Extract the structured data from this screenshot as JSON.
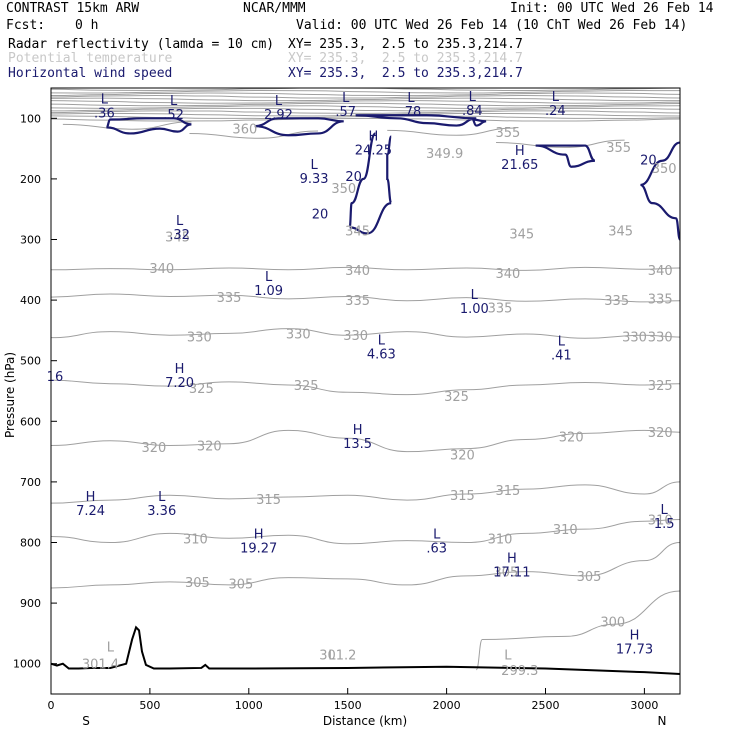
{
  "header": {
    "model": "CONTRAST 15km ARW",
    "org": "NCAR/MMM",
    "init": "Init: 00 UTC Wed 26 Feb 14",
    "fcst_label": "Fcst:",
    "fcst_value": "0 h",
    "valid": "Valid: 00 UTC Wed 26 Feb 14 (10 ChT Wed 26 Feb 14)",
    "fields": [
      {
        "name": "Radar reflectivity (lamda = 10 cm)",
        "xy": "XY= 235.3,  2.5 to 235.3,214.7"
      },
      {
        "name": "Potential temperature",
        "xy": "XY= 235.3,  2.5 to 235.3,214.7"
      },
      {
        "name": "Horizontal wind speed",
        "xy": "XY= 235.3,  2.5 to 235.3,214.7"
      }
    ]
  },
  "colors": {
    "theta": "#a0a0a0",
    "wind": "#1a1a6e",
    "terrain": "#000000",
    "potential_temperature_header": "#c8c8c8"
  },
  "chart_data": {
    "type": "contour",
    "xlabel": "Distance (km)",
    "ylabel": "Pressure (hPa)",
    "xlim": [
      0,
      3180
    ],
    "ylim": [
      1050,
      50
    ],
    "x_ticks": [
      0,
      500,
      1000,
      1500,
      2000,
      2500,
      3000
    ],
    "y_ticks": [
      100,
      200,
      300,
      400,
      500,
      600,
      700,
      800,
      900,
      1000
    ],
    "end_labels": {
      "left": "S",
      "right": "N"
    },
    "theta_labels": [
      {
        "x": 980,
        "y": 117,
        "text": "360"
      },
      {
        "x": 2310,
        "y": 123,
        "text": "355"
      },
      {
        "x": 2870,
        "y": 147,
        "text": "355"
      },
      {
        "x": 1990,
        "y": 157,
        "text": "349.9"
      },
      {
        "x": 3100,
        "y": 182,
        "text": "350"
      },
      {
        "x": 1480,
        "y": 215,
        "text": "350"
      },
      {
        "x": 640,
        "y": 295,
        "text": "345"
      },
      {
        "x": 1550,
        "y": 285,
        "text": "345"
      },
      {
        "x": 2380,
        "y": 290,
        "text": "345"
      },
      {
        "x": 2880,
        "y": 285,
        "text": "345"
      },
      {
        "x": 560,
        "y": 347,
        "text": "340"
      },
      {
        "x": 1550,
        "y": 350,
        "text": "340"
      },
      {
        "x": 2310,
        "y": 355,
        "text": "340"
      },
      {
        "x": 3080,
        "y": 350,
        "text": "340"
      },
      {
        "x": 900,
        "y": 395,
        "text": "335"
      },
      {
        "x": 1550,
        "y": 400,
        "text": "335"
      },
      {
        "x": 2270,
        "y": 412,
        "text": "335"
      },
      {
        "x": 2860,
        "y": 400,
        "text": "335"
      },
      {
        "x": 3080,
        "y": 397,
        "text": "335"
      },
      {
        "x": 750,
        "y": 460,
        "text": "330"
      },
      {
        "x": 1250,
        "y": 455,
        "text": "330"
      },
      {
        "x": 1540,
        "y": 458,
        "text": "330"
      },
      {
        "x": 2950,
        "y": 460,
        "text": "330"
      },
      {
        "x": 3080,
        "y": 460,
        "text": "330"
      },
      {
        "x": 760,
        "y": 545,
        "text": "325"
      },
      {
        "x": 1290,
        "y": 540,
        "text": "325"
      },
      {
        "x": 2050,
        "y": 558,
        "text": "325"
      },
      {
        "x": 3080,
        "y": 540,
        "text": "325"
      },
      {
        "x": 520,
        "y": 642,
        "text": "320"
      },
      {
        "x": 800,
        "y": 640,
        "text": "320"
      },
      {
        "x": 2080,
        "y": 655,
        "text": "320"
      },
      {
        "x": 2630,
        "y": 625,
        "text": "320"
      },
      {
        "x": 3080,
        "y": 618,
        "text": "320"
      },
      {
        "x": 1100,
        "y": 728,
        "text": "315"
      },
      {
        "x": 2080,
        "y": 722,
        "text": "315"
      },
      {
        "x": 2310,
        "y": 713,
        "text": "315"
      },
      {
        "x": 730,
        "y": 793,
        "text": "310"
      },
      {
        "x": 2270,
        "y": 793,
        "text": "310"
      },
      {
        "x": 2600,
        "y": 778,
        "text": "310"
      },
      {
        "x": 3080,
        "y": 762,
        "text": "310"
      },
      {
        "x": 740,
        "y": 865,
        "text": "305"
      },
      {
        "x": 960,
        "y": 868,
        "text": "305"
      },
      {
        "x": 2300,
        "y": 848,
        "text": "305"
      },
      {
        "x": 2720,
        "y": 855,
        "text": "305"
      },
      {
        "x": 2840,
        "y": 930,
        "text": "300"
      },
      {
        "x": 250,
        "y": 1000,
        "text": "301.4"
      },
      {
        "x": 1450,
        "y": 985,
        "text": "301.2"
      },
      {
        "x": 2370,
        "y": 1010,
        "text": "299.3"
      }
    ],
    "theta_extrema": [
      {
        "x": 1420,
        "y": 985,
        "text": "L"
      },
      {
        "x": 300,
        "y": 972,
        "text": "L"
      },
      {
        "x": 2310,
        "y": 985,
        "text": "L"
      }
    ],
    "wind_contour_labels": [
      {
        "x": 1530,
        "y": 195,
        "text": "20"
      },
      {
        "x": 1360,
        "y": 257,
        "text": "20"
      },
      {
        "x": 3020,
        "y": 168,
        "text": "20"
      },
      {
        "x": 20,
        "y": 525,
        "text": "16"
      }
    ],
    "wind_extrema": [
      {
        "x": 270,
        "y": 72,
        "type": "L",
        "value": ".36"
      },
      {
        "x": 620,
        "y": 75,
        "type": "L",
        "value": ".52"
      },
      {
        "x": 1150,
        "y": 75,
        "type": "L",
        "value": "2.92"
      },
      {
        "x": 1490,
        "y": 70,
        "type": "L",
        "value": ".57"
      },
      {
        "x": 1820,
        "y": 70,
        "type": "L",
        "value": ".78"
      },
      {
        "x": 2130,
        "y": 68,
        "type": "L",
        "value": ".84"
      },
      {
        "x": 2550,
        "y": 68,
        "type": "L",
        "value": ".24"
      },
      {
        "x": 1630,
        "y": 133,
        "type": "H",
        "value": "24.25"
      },
      {
        "x": 2370,
        "y": 157,
        "type": "H",
        "value": "21.65"
      },
      {
        "x": 1330,
        "y": 180,
        "type": "L",
        "value": "9.33"
      },
      {
        "x": 650,
        "y": 273,
        "type": "L",
        "value": ".32"
      },
      {
        "x": 1100,
        "y": 365,
        "type": "L",
        "value": "1.09"
      },
      {
        "x": 2140,
        "y": 395,
        "type": "L",
        "value": "1.00"
      },
      {
        "x": 1670,
        "y": 470,
        "type": "L",
        "value": "4.63"
      },
      {
        "x": 2580,
        "y": 472,
        "type": "L",
        "value": ".41"
      },
      {
        "x": 650,
        "y": 517,
        "type": "H",
        "value": "7.20"
      },
      {
        "x": 1550,
        "y": 618,
        "type": "H",
        "value": "13.5"
      },
      {
        "x": 200,
        "y": 728,
        "type": "H",
        "value": "7.24"
      },
      {
        "x": 560,
        "y": 728,
        "type": "L",
        "value": "3.36"
      },
      {
        "x": 1050,
        "y": 790,
        "type": "H",
        "value": "19.27"
      },
      {
        "x": 1950,
        "y": 790,
        "type": "L",
        "value": ".63"
      },
      {
        "x": 2330,
        "y": 830,
        "type": "H",
        "value": "17.11"
      },
      {
        "x": 3100,
        "y": 750,
        "type": "L",
        "value": "1.5"
      },
      {
        "x": 2950,
        "y": 957,
        "type": "H",
        "value": "17.73"
      }
    ],
    "terrain": {
      "x": [
        0,
        30,
        60,
        90,
        140,
        200,
        300,
        380,
        410,
        430,
        445,
        460,
        480,
        520,
        600,
        760,
        780,
        800,
        1000,
        1500,
        2000,
        2500,
        3000,
        3180
      ],
      "p": [
        1000,
        1003,
        1000,
        1008,
        1008,
        1007,
        1007,
        1000,
        960,
        940,
        945,
        980,
        1002,
        1008,
        1008,
        1007,
        1002,
        1008,
        1008,
        1007,
        1005,
        1008,
        1014,
        1017
      ]
    },
    "theta_line_levels": [
      {
        "x": [
          0,
          300,
          600,
          900,
          1200,
          1500,
          1800,
          2100,
          2400,
          2700,
          3000,
          3180
        ],
        "p": [
          350,
          348,
          350,
          347,
          350,
          346,
          350,
          347,
          351,
          346,
          349,
          347
        ]
      },
      {
        "x": [
          0,
          300,
          600,
          900,
          1200,
          1500,
          1800,
          2100,
          2400,
          2700,
          3000,
          3180
        ],
        "p": [
          395,
          390,
          394,
          392,
          398,
          394,
          401,
          396,
          402,
          398,
          403,
          401
        ]
      },
      {
        "x": [
          0,
          300,
          600,
          900,
          1200,
          1500,
          1800,
          2100,
          2400,
          2700,
          3000,
          3180
        ],
        "p": [
          462,
          452,
          458,
          455,
          447,
          458,
          452,
          461,
          456,
          463,
          458,
          461
        ]
      },
      {
        "x": [
          0,
          300,
          600,
          900,
          1200,
          1500,
          1800,
          2100,
          2400,
          2700,
          3000,
          3180
        ],
        "p": [
          532,
          538,
          542,
          535,
          540,
          552,
          556,
          548,
          540,
          536,
          540,
          538
        ]
      },
      {
        "x": [
          0,
          300,
          600,
          900,
          1200,
          1500,
          1800,
          2100,
          2400,
          2700,
          3000,
          3180
        ],
        "p": [
          640,
          632,
          640,
          637,
          615,
          628,
          650,
          645,
          630,
          620,
          615,
          618
        ]
      },
      {
        "x": [
          0,
          300,
          600,
          900,
          1200,
          1500,
          1800,
          2100,
          2400,
          2700,
          3000,
          3180
        ],
        "p": [
          735,
          730,
          722,
          728,
          725,
          722,
          730,
          720,
          712,
          705,
          720,
          700
        ]
      },
      {
        "x": [
          0,
          300,
          600,
          900,
          1200,
          1500,
          1800,
          2100,
          2400,
          2700,
          3000,
          3180
        ],
        "p": [
          790,
          800,
          785,
          793,
          788,
          802,
          797,
          800,
          785,
          778,
          765,
          762
        ]
      },
      {
        "x": [
          0,
          300,
          600,
          900,
          1200,
          1500,
          1800,
          2100,
          2400,
          2700,
          3000,
          3180
        ],
        "p": [
          875,
          870,
          865,
          870,
          858,
          860,
          870,
          855,
          848,
          855,
          830,
          800
        ]
      }
    ]
  }
}
